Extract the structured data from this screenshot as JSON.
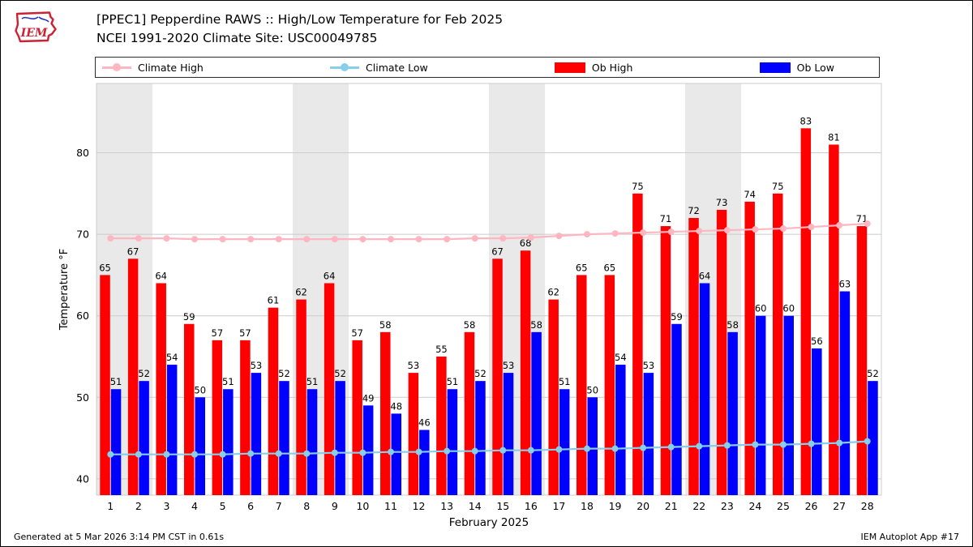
{
  "header": {
    "title_line1": "[PPEC1] Pepperdine RAWS :: High/Low Temperature for Feb 2025",
    "title_line2": "NCEI 1991-2020 Climate Site: USC00049785",
    "logo_text": "IEM"
  },
  "legend": {
    "items": [
      {
        "label": "Climate High",
        "type": "line",
        "color": "#ffb6c1"
      },
      {
        "label": "Climate Low",
        "type": "line",
        "color": "#87ceeb"
      },
      {
        "label": "Ob High",
        "type": "bar",
        "color": "#ff0000"
      },
      {
        "label": "Ob Low",
        "type": "bar",
        "color": "#0000ff"
      }
    ]
  },
  "chart_data": {
    "type": "bar",
    "title": "[PPEC1] Pepperdine RAWS :: High/Low Temperature for Feb 2025",
    "subtitle": "NCEI 1991-2020 Climate Site: USC00049785",
    "xlabel": "February 2025",
    "ylabel": "Temperature °F",
    "ylim": [
      38,
      88.5
    ],
    "yticks": [
      40,
      50,
      60,
      70,
      80
    ],
    "grid": true,
    "legend_position": "top",
    "categories": [
      1,
      2,
      3,
      4,
      5,
      6,
      7,
      8,
      9,
      10,
      11,
      12,
      13,
      14,
      15,
      16,
      17,
      18,
      19,
      20,
      21,
      22,
      23,
      24,
      25,
      26,
      27,
      28
    ],
    "weekend_bands": [
      [
        1,
        2
      ],
      [
        8,
        9
      ],
      [
        15,
        16
      ],
      [
        22,
        23
      ]
    ],
    "series": [
      {
        "name": "Ob High",
        "type": "bar",
        "color": "#ff0000",
        "values": [
          65,
          67,
          64,
          59,
          57,
          57,
          61,
          62,
          64,
          57,
          58,
          53,
          55,
          58,
          67,
          68,
          62,
          65,
          65,
          75,
          71,
          72,
          73,
          74,
          75,
          83,
          81,
          71
        ]
      },
      {
        "name": "Ob Low",
        "type": "bar",
        "color": "#0000ff",
        "values": [
          51,
          52,
          54,
          50,
          51,
          53,
          52,
          51,
          52,
          49,
          48,
          46,
          51,
          52,
          53,
          58,
          51,
          50,
          54,
          53,
          59,
          64,
          58,
          60,
          60,
          56,
          63,
          52
        ]
      },
      {
        "name": "Climate High",
        "type": "line",
        "color": "#ffb6c1",
        "values": [
          69.5,
          69.5,
          69.5,
          69.4,
          69.4,
          69.4,
          69.4,
          69.4,
          69.4,
          69.4,
          69.4,
          69.4,
          69.4,
          69.5,
          69.5,
          69.6,
          69.8,
          70.0,
          70.1,
          70.2,
          70.3,
          70.4,
          70.5,
          70.6,
          70.7,
          70.9,
          71.1,
          71.3
        ]
      },
      {
        "name": "Climate Low",
        "type": "line",
        "color": "#87ceeb",
        "values": [
          43.0,
          43.0,
          43.0,
          43.0,
          43.0,
          43.1,
          43.1,
          43.1,
          43.2,
          43.2,
          43.3,
          43.3,
          43.4,
          43.4,
          43.5,
          43.5,
          43.6,
          43.7,
          43.7,
          43.8,
          43.9,
          44.0,
          44.1,
          44.2,
          44.2,
          44.3,
          44.4,
          44.6
        ]
      }
    ]
  },
  "footer": {
    "left": "Generated at 5 Mar 2026 3:14 PM CST in 0.61s",
    "right": "IEM Autoplot App #17"
  }
}
